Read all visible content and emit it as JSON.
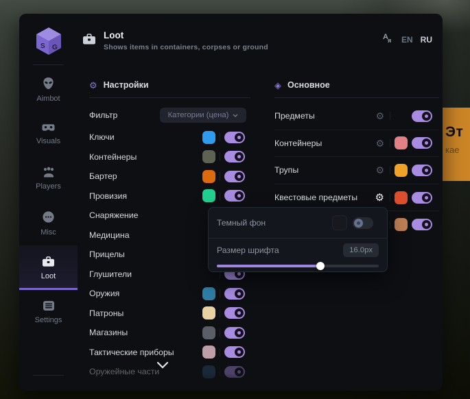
{
  "header": {
    "title": "Loot",
    "subtitle": "Shows items in containers, corpses or ground",
    "languages": [
      {
        "label": "EN",
        "active": false
      },
      {
        "label": "RU",
        "active": true
      }
    ]
  },
  "sidebar": {
    "items": [
      {
        "label": "Aimbot",
        "active": false
      },
      {
        "label": "Visuals",
        "active": false
      },
      {
        "label": "Players",
        "active": false
      },
      {
        "label": "Misc",
        "active": false
      },
      {
        "label": "Loot",
        "active": true
      },
      {
        "label": "Settings",
        "active": false
      }
    ]
  },
  "settings_panel": {
    "title": "Настройки",
    "filter_label": "Фильтр",
    "filter_value": "Категории (цена)",
    "items": [
      {
        "label": "Ключи",
        "color": "#2f9bef",
        "enabled": true
      },
      {
        "label": "Контейнеры",
        "color": "#5d6253",
        "enabled": true
      },
      {
        "label": "Бартер",
        "color": "#dc6b10",
        "enabled": true
      },
      {
        "label": "Провизия",
        "color": "#22ce90",
        "enabled": true
      },
      {
        "label": "Снаряжение",
        "color": null,
        "enabled": true,
        "covered": true
      },
      {
        "label": "Медицина",
        "color": null,
        "enabled": true,
        "covered": true
      },
      {
        "label": "Прицелы",
        "color": null,
        "enabled": true,
        "covered": true
      },
      {
        "label": "Глушители",
        "color": null,
        "enabled": true,
        "covered": true
      },
      {
        "label": "Оружия",
        "color": "#2f7ea6",
        "enabled": true
      },
      {
        "label": "Патроны",
        "color": "#e9d2a2",
        "enabled": true
      },
      {
        "label": "Магазины",
        "color": "#5a5e66",
        "enabled": true
      },
      {
        "label": "Тактические приборы",
        "color": "#bf9da9",
        "enabled": true
      },
      {
        "label": "Оружейные части",
        "color": "#2b4d6e",
        "enabled": true,
        "faded": true
      }
    ]
  },
  "main_panel": {
    "title": "Основное",
    "rows": [
      {
        "label": "Предметы",
        "color": null,
        "enabled": true,
        "gear_bright": false
      },
      {
        "label": "Контейнеры",
        "color": "#e28086",
        "enabled": true,
        "gear_bright": false
      },
      {
        "label": "Трупы",
        "color": "#f0a227",
        "enabled": true,
        "gear_bright": false
      },
      {
        "label": "Квестовые предметы",
        "color": "#dd4e2c",
        "enabled": true,
        "gear_bright": true
      },
      {
        "label": "",
        "color": "#bf7f55",
        "enabled": true,
        "gear_bright": false,
        "label_hidden": true
      }
    ]
  },
  "popup": {
    "dark_bg_label": "Темный фон",
    "dark_bg_enabled": false,
    "dark_bg_color": "#17191f",
    "font_size_label": "Размер шрифта",
    "font_size_value": "16.0px",
    "slider_percent": 64
  },
  "game_background": {
    "sign_text_top": "Эт",
    "sign_text_bottom": "кае"
  },
  "colors": {
    "accent": "#8b74d8",
    "toggle_on": "#a78ce2"
  }
}
